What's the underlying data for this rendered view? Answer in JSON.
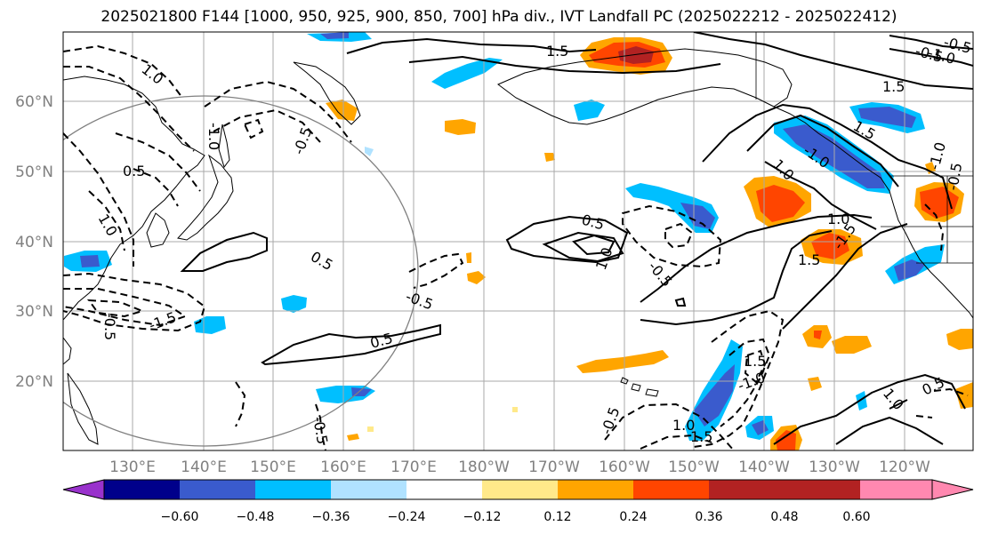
{
  "title": "2025021800 F144 [1000, 950, 925, 900, 850, 700] hPa div., IVT Landfall PC (2025022212 - 2025022412)",
  "lat_labels": [
    "60°N",
    "50°N",
    "40°N",
    "30°N",
    "20°N"
  ],
  "lon_labels": [
    "130°E",
    "140°E",
    "150°E",
    "160°E",
    "170°E",
    "180°W",
    "170°W",
    "160°W",
    "150°W",
    "140°W",
    "130°W",
    "120°W"
  ],
  "colorbar": {
    "ticks": [
      "−0.60",
      "−0.48",
      "−0.36",
      "−0.24",
      "−0.12",
      "0.12",
      "0.24",
      "0.36",
      "0.48",
      "0.60"
    ],
    "colors": [
      "#9932cc",
      "#00008b",
      "#3a5bcd",
      "#00bfff",
      "#b0e2ff",
      "#ffffff",
      "#ffe98a",
      "#ffa500",
      "#ff4500",
      "#b22222",
      "#ff88b0"
    ]
  },
  "contour_labels": [
    {
      "text": "1.5"
    },
    {
      "text": "1.0"
    },
    {
      "text": "0.5"
    },
    {
      "text": "1.0"
    },
    {
      "text": "-1.0"
    },
    {
      "text": "-0.5"
    },
    {
      "text": "-0.5"
    },
    {
      "text": "-1.5"
    },
    {
      "text": "0.5"
    },
    {
      "text": "-0.5"
    },
    {
      "text": "0.5"
    },
    {
      "text": "-0.5"
    },
    {
      "text": "0.5"
    },
    {
      "text": "1.0"
    },
    {
      "text": "-0.5"
    },
    {
      "text": "1.5"
    },
    {
      "text": "1.0"
    },
    {
      "text": "1.5"
    },
    {
      "text": "1.0"
    },
    {
      "text": "-0.5"
    },
    {
      "text": "1.5"
    },
    {
      "text": "-1.0"
    },
    {
      "text": "-1.0"
    },
    {
      "text": "-1.5"
    },
    {
      "text": "-0.5"
    },
    {
      "text": "1.0"
    },
    {
      "text": "0.5"
    },
    {
      "text": "1.5"
    },
    {
      "text": "-1.0"
    },
    {
      "text": "-0.5"
    },
    {
      "text": "1.5"
    },
    {
      "text": "1.0"
    },
    {
      "text": "-1.0"
    },
    {
      "text": "-0.5"
    }
  ]
}
